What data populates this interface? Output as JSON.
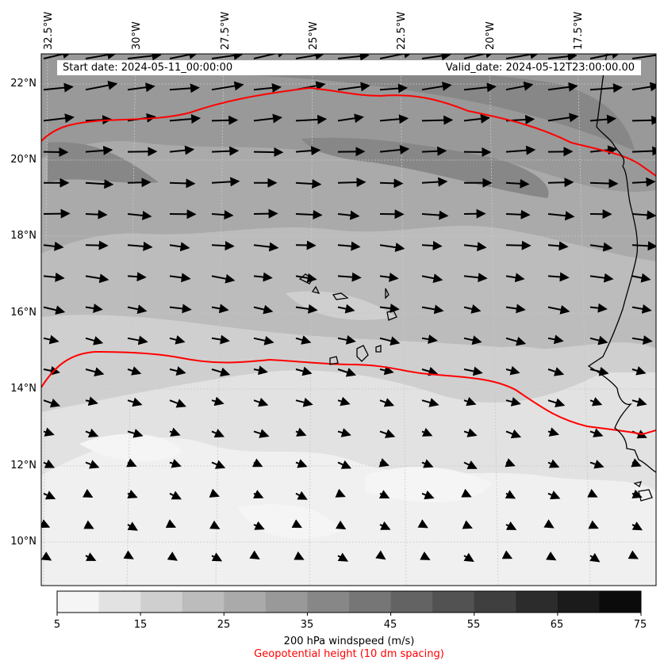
{
  "map": {
    "start_date": "Start date: 2024-05-11_00:00:00",
    "valid_date": "Valid_date: 2024-05-12T23:00:00.00",
    "lon_labels": [
      "32.5°W",
      "30°W",
      "27.5°W",
      "25°W",
      "22.5°W",
      "20°W",
      "17.5°W"
    ],
    "lat_labels": [
      "22°N",
      "20°N",
      "18°N",
      "16°N",
      "14°N",
      "12°N",
      "10°N"
    ],
    "contour_color": "#ff0000",
    "coastline_color": "#000000"
  },
  "colorbar": {
    "ticks": [
      "5",
      "15",
      "25",
      "35",
      "45",
      "55",
      "65",
      "75"
    ],
    "colors": [
      "#f5f5f5",
      "#e2e2e2",
      "#cfcfcf",
      "#bcbcbc",
      "#aaaaaa",
      "#999999",
      "#878787",
      "#767676",
      "#636363",
      "#525252",
      "#3f3f3f",
      "#2c2c2c",
      "#1b1b1b",
      "#0b0b0b"
    ],
    "label": "200 hPa windspeed (m/s)",
    "sublabel": "Geopotential height (10 dm spacing)",
    "sublabel_color": "#ff0000"
  }
}
